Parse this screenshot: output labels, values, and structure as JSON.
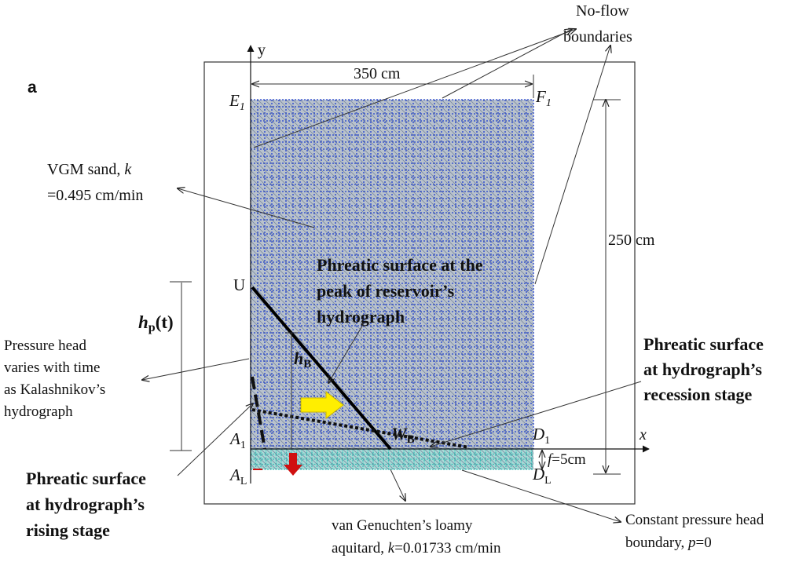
{
  "panel_label": "a",
  "axes": {
    "y_label": "y",
    "x_label": "x"
  },
  "dimensions": {
    "width": "350 cm",
    "height": "250 cm",
    "aquitard_prefix": "f",
    "aquitard_value": "=5cm"
  },
  "corners": {
    "E": "E",
    "E_sub": "1",
    "F": "F",
    "F_sub": "1",
    "A1": "A",
    "A1_sub": "1",
    "D1": "D",
    "D1_sub": "1",
    "AL": "A",
    "AL_sub": "L",
    "DL": "D",
    "DL_sub": "L",
    "U": "U"
  },
  "annotations": {
    "no_flow_line1": "No-flow",
    "no_flow_line2": "boundaries",
    "sand_line1_prefix": "VGM sand, ",
    "sand_k": "k",
    "sand_line2": "=0.495 cm/min",
    "hp_main": "h",
    "hp_sub": "p",
    "hp_suffix": "(t)",
    "pressure_line1": "Pressure head",
    "pressure_line2": "varies with time",
    "pressure_line3": "as Kalashnikov’s",
    "pressure_line4": "hydrograph",
    "peak_line1": "Phreatic surface at the",
    "peak_line2": "peak of reservoir’s",
    "peak_line3": "hydrograph",
    "hB_main": "h",
    "hB_sub": "B",
    "WB_main": "W",
    "WB_sub": "B",
    "recession_line1": "Phreatic surface",
    "recession_line2": "at hydrograph’s",
    "recession_line3": "recession stage",
    "rising_line1": "Phreatic surface",
    "rising_line2": "at hydrograph’s",
    "rising_line3": "rising stage",
    "aquitard_line1": "van Genuchten’s loamy",
    "aquitard_line2_prefix": "aquitard, ",
    "aquitard_k": "k",
    "aquitard_line2_value": "=0.01733 cm/min",
    "constant_line1": "Constant pressure head",
    "constant_line2_prefix": "boundary, ",
    "constant_p": "p",
    "constant_line2_value": "=0"
  },
  "colors": {
    "sand_fill": "#b9c2cc",
    "mesh_blue": "#1f3fd0",
    "aquitard_fill": "#a9d9d6",
    "aquitard_mesh": "#39c0b8",
    "flow_arrow": "#ffee00",
    "drain_arrow": "#d01010"
  }
}
